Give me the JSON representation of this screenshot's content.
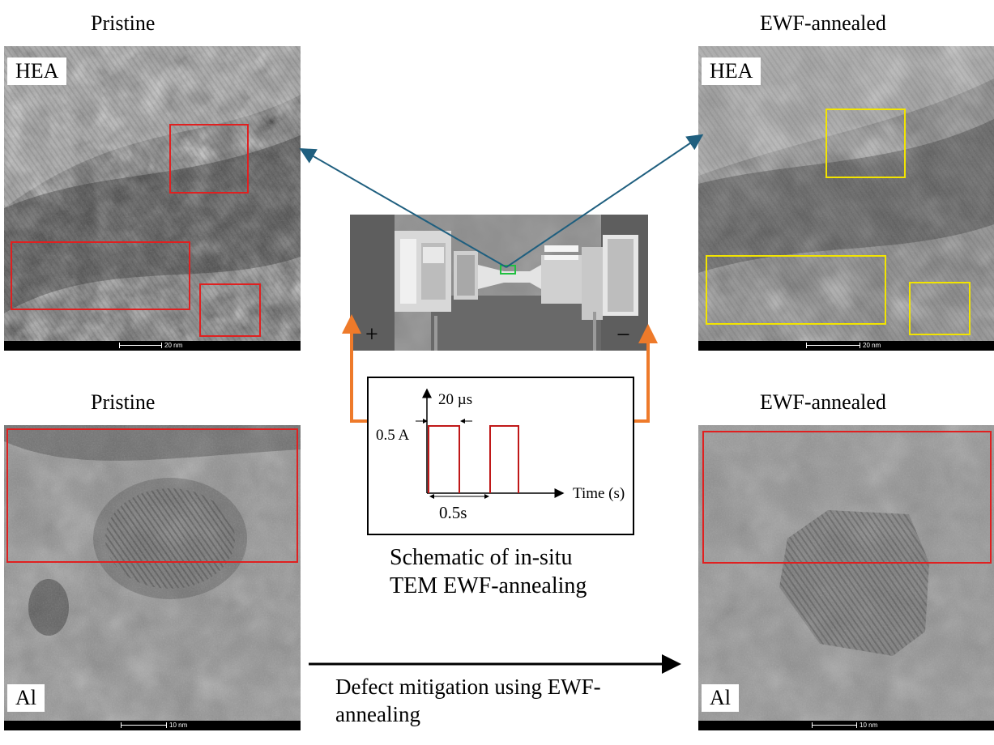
{
  "captions": {
    "top_left": "Pristine",
    "top_right": "EWF-annealed",
    "bottom_left": "Pristine",
    "bottom_right": "EWF-annealed"
  },
  "panels": {
    "top_left": {
      "label": "HEA",
      "scale": "20 nm"
    },
    "top_right": {
      "label": "HEA",
      "scale": "20 nm"
    },
    "bottom_left": {
      "label": "Al",
      "scale": "10 nm"
    },
    "bottom_right": {
      "label": "Al",
      "scale": "10 nm"
    }
  },
  "sem": {
    "plus": "+",
    "minus": "−"
  },
  "schematic": {
    "pulse_width": "20 µs",
    "current": "0.5 A",
    "period": "0.5s",
    "x_axis": "Time (s)"
  },
  "center_caption": {
    "line1": "Schematic of in-situ",
    "line2": "TEM EWF-annealing"
  },
  "bottom_caption": {
    "line1": "Defect mitigation using EWF-",
    "line2": "annealing"
  },
  "colors": {
    "defect_box": "#e02020",
    "annealed_box": "#f2e400",
    "pointer": "#1f5f7f",
    "electrode_arrow": "#ee7a2a",
    "pulse": "#c01818",
    "region_box": "#20c040"
  }
}
